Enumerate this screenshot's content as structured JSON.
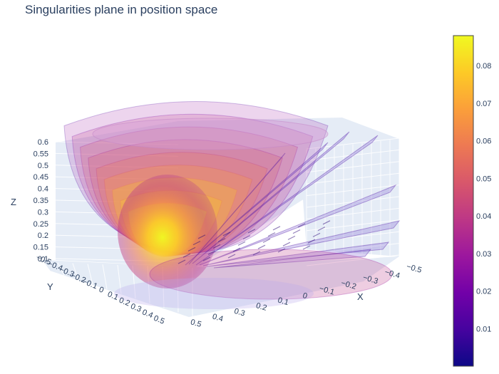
{
  "chart_data": {
    "type": "isosurface-3d",
    "title": "Singularities plane in position space",
    "axes": {
      "x": {
        "label": "X",
        "ticks": [
          "0.5",
          "0.4",
          "0.3",
          "0.2",
          "0.1",
          "0",
          "−0.1",
          "−0.2",
          "−0.3",
          "−0.4",
          "−0.5"
        ]
      },
      "y": {
        "label": "Y",
        "ticks": [
          "−0.5",
          "−0.4",
          "−0.3",
          "−0.2",
          "−0.1",
          "0",
          "0.1",
          "0.2",
          "0.3",
          "0.4",
          "0.5"
        ]
      },
      "z": {
        "label": "Z",
        "ticks": [
          "0.6",
          "0.55",
          "0.5",
          "0.45",
          "0.4",
          "0.35",
          "0.3",
          "0.25",
          "0.2",
          "0.15",
          "0.1"
        ],
        "range": [
          0.1,
          0.6
        ]
      }
    },
    "colorbar": {
      "ticks": [
        "0.08",
        "0.07",
        "0.06",
        "0.05",
        "0.04",
        "0.03",
        "0.02",
        "0.01"
      ],
      "tick_values": [
        0.08,
        0.07,
        0.06,
        0.05,
        0.04,
        0.03,
        0.02,
        0.01
      ],
      "range": [
        0.0,
        0.088
      ],
      "colorscale": [
        "#0d0887",
        "#46039f",
        "#7201a8",
        "#9c179e",
        "#bd3786",
        "#d8576b",
        "#ed7953",
        "#fb9f3a",
        "#fdca26",
        "#f0f921"
      ]
    },
    "grid": true,
    "background_color": "#e5ecf6"
  }
}
